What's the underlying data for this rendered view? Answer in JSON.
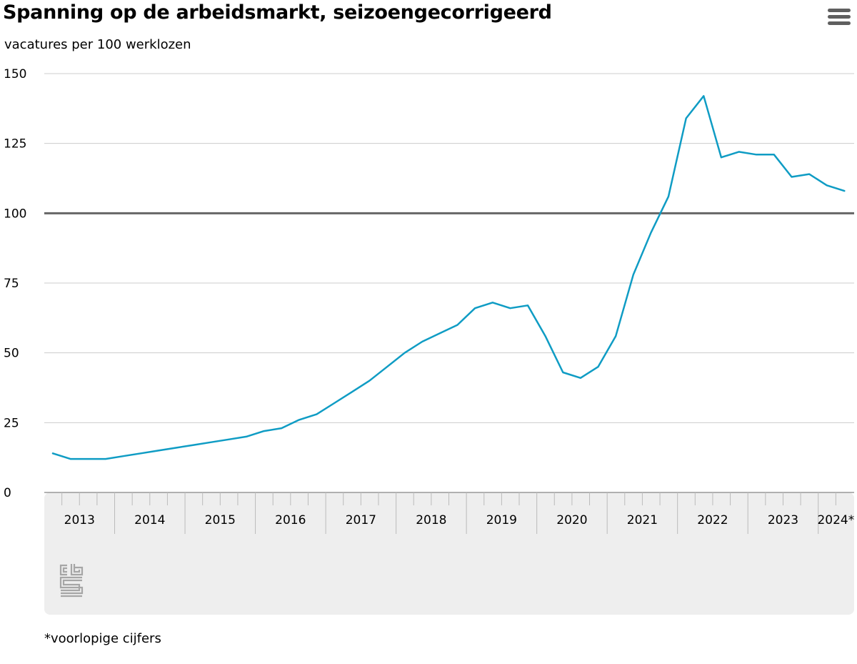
{
  "header": {
    "title": "Spanning op de arbeidsmarkt, seizoengecorrigeerd",
    "menu_icon": "hamburger-menu-icon"
  },
  "chart_data": {
    "type": "line",
    "title": "Spanning op de arbeidsmarkt, seizoengecorrigeerd",
    "ylabel": "vacatures per 100 werklozen",
    "xlabel": "",
    "ylim": [
      0,
      150
    ],
    "yticks": [
      0,
      25,
      50,
      75,
      100,
      125,
      150
    ],
    "reference_line": 100,
    "grid": true,
    "colors": {
      "series": "#0f9cc4",
      "reference": "#666666",
      "grid": "#cccccc",
      "axis_band": "#eeeeee"
    },
    "x_categories": [
      "2013",
      "2014",
      "2015",
      "2016",
      "2017",
      "2018",
      "2019",
      "2020",
      "2021",
      "2022",
      "2023",
      "2024*"
    ],
    "x_label_quarters": [
      1,
      1,
      1,
      1,
      1,
      1,
      1,
      1,
      1,
      1,
      1,
      0.5
    ],
    "series": [
      {
        "x": [
          "2013 Q1",
          "2013 Q2",
          "2013 Q3",
          "2013 Q4",
          "2014 Q1",
          "2014 Q2",
          "2014 Q3",
          "2014 Q4",
          "2015 Q1",
          "2015 Q2",
          "2015 Q3",
          "2015 Q4",
          "2016 Q1",
          "2016 Q2",
          "2016 Q3",
          "2016 Q4",
          "2017 Q1",
          "2017 Q2",
          "2017 Q3",
          "2017 Q4",
          "2018 Q1",
          "2018 Q2",
          "2018 Q3",
          "2018 Q4",
          "2019 Q1",
          "2019 Q2",
          "2019 Q3",
          "2019 Q4",
          "2020 Q1",
          "2020 Q2",
          "2020 Q3",
          "2020 Q4",
          "2021 Q1",
          "2021 Q2",
          "2021 Q3",
          "2021 Q4",
          "2022 Q1",
          "2022 Q2",
          "2022 Q3",
          "2022 Q4",
          "2023 Q1",
          "2023 Q2",
          "2023 Q3",
          "2023 Q4",
          "2024 Q1",
          "2024 Q2"
        ],
        "values": [
          14,
          12,
          12,
          12,
          13,
          14,
          15,
          16,
          17,
          18,
          19,
          20,
          22,
          23,
          26,
          28,
          32,
          36,
          40,
          45,
          50,
          54,
          57,
          60,
          66,
          68,
          66,
          67,
          56,
          43,
          41,
          45,
          56,
          78,
          93,
          106,
          134,
          142,
          120,
          122,
          121,
          121,
          113,
          114,
          110,
          108
        ]
      }
    ]
  },
  "footer": {
    "logo_icon": "cbs-logo-icon",
    "footnote": "*voorlopige cijfers"
  }
}
